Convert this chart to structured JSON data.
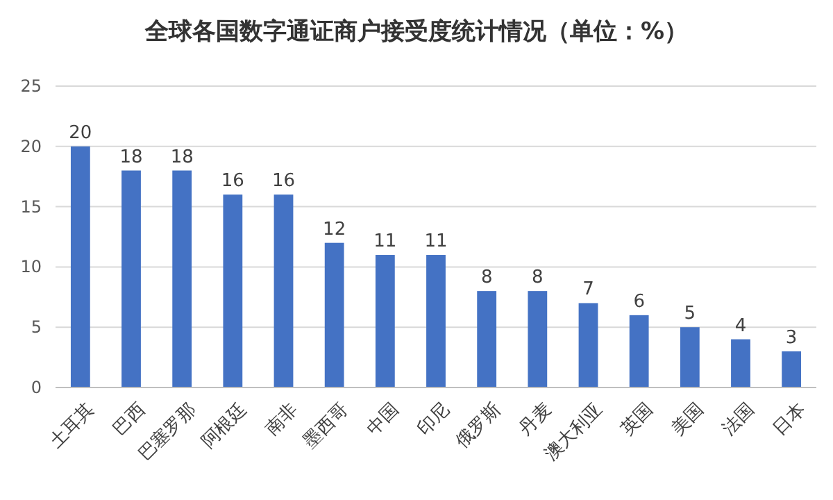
{
  "chart_data": {
    "type": "bar",
    "title": "全球各国数字通证商户接受度统计情况（单位：%）",
    "categories": [
      "土耳其",
      "巴西",
      "巴塞罗那",
      "阿根廷",
      "南非",
      "墨西哥",
      "中国",
      "印尼",
      "俄罗斯",
      "丹麦",
      "澳大利亚",
      "英国",
      "美国",
      "法国",
      "日本"
    ],
    "values": [
      20,
      18,
      18,
      16,
      16,
      12,
      11,
      11,
      8,
      8,
      7,
      6,
      5,
      4,
      3
    ],
    "color": "#4472c4",
    "ylim": [
      0,
      25
    ],
    "yticks": [
      0,
      5,
      10,
      15,
      20,
      25
    ],
    "grid": "y",
    "data_labels": true
  }
}
